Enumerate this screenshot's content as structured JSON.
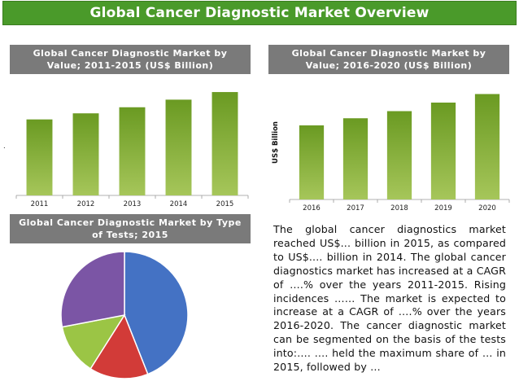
{
  "header": {
    "title": "Global Cancer Diagnostic Market Overview"
  },
  "colors": {
    "banner": "#4a9a2a",
    "title_bg": "#7a7a7a",
    "bar_light": "#9cbf4a",
    "bar_dark": "#5b8a1e"
  },
  "chart_data": [
    {
      "type": "bar",
      "title": "Global Cancer Diagnostic Market by Value; 2011-2015 (US$ Billion)",
      "categories": [
        "2011",
        "2012",
        "2013",
        "2014",
        "2015"
      ],
      "values": [
        50,
        54,
        58,
        63,
        68
      ],
      "xlabel": "",
      "ylabel": "",
      "ylim": [
        0,
        75
      ],
      "side_mark": "."
    },
    {
      "type": "bar",
      "title": "Global Cancer Diagnostic Market by Value; 2016-2020 (US$ Billion)",
      "categories": [
        "2016",
        "2017",
        "2018",
        "2019",
        "2020"
      ],
      "values": [
        52,
        57,
        62,
        68,
        74
      ],
      "xlabel": "",
      "ylabel": "US$ Billion",
      "ylim": [
        0,
        80
      ]
    },
    {
      "type": "pie",
      "title": "Global Cancer Diagnostic Market by Type of Tests; 2015",
      "values": [
        44,
        15,
        13,
        28
      ],
      "colors": [
        "#4472c4",
        "#d23b38",
        "#9bc545",
        "#7b55a5"
      ]
    }
  ],
  "description": "The global cancer diagnostics market reached US$... billion in 2015, as compared to US$.... billion in 2014. The global cancer diagnostics market has increased at a CAGR of ….% over the years 2011-2015. Rising incidences …… The market is expected to increase at a CAGR of ….% over the years 2016-2020. The cancer diagnostic market can be segmented on the basis of the tests into:…. …. held the maximum share of … in 2015, followed by …"
}
